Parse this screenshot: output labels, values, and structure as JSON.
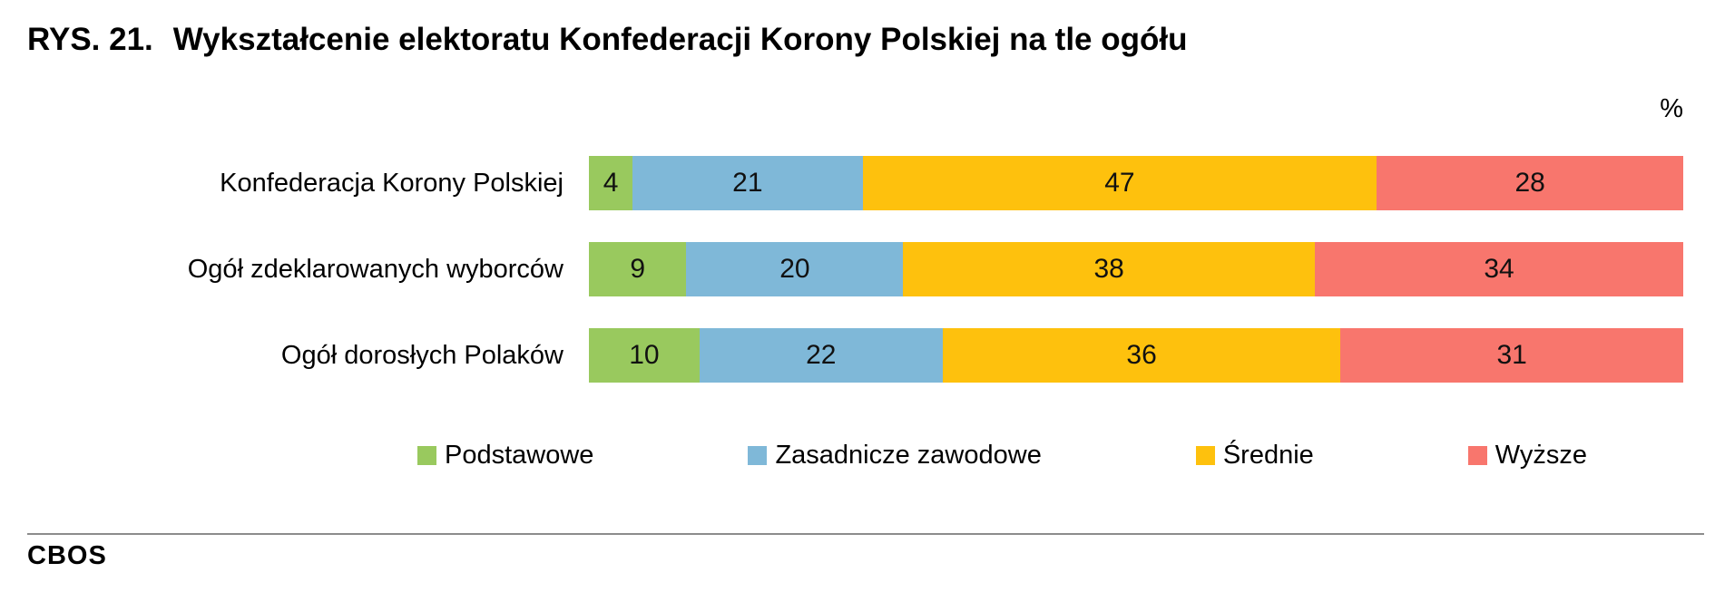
{
  "title": {
    "prefix": "RYS. 21.",
    "text": "Wykształcenie elektoratu Konfederacji Korony Polskiej na tle ogółu"
  },
  "unit_label": "%",
  "footer": {
    "brand": "CBOS"
  },
  "chart_data": {
    "type": "bar",
    "orientation": "horizontal",
    "stacked": true,
    "unit": "%",
    "title": "RYS. 21. Wykształcenie elektoratu Konfederacji Korony Polskiej na tle ogółu",
    "categories": [
      "Konfederacja Korony Polskiej",
      "Ogół zdeklarowanych wyborców",
      "Ogół dorosłych Polaków"
    ],
    "series": [
      {
        "name": "Podstawowe",
        "color": "#99C95E",
        "values": [
          4,
          9,
          10
        ]
      },
      {
        "name": "Zasadnicze zawodowe",
        "color": "#7FB8D8",
        "values": [
          21,
          20,
          22
        ]
      },
      {
        "name": "Średnie",
        "color": "#FEC10D",
        "values": [
          47,
          38,
          36
        ]
      },
      {
        "name": "Wyższe",
        "color": "#F8766D",
        "values": [
          28,
          34,
          31
        ]
      }
    ],
    "legend_position": "bottom",
    "value_labels": "inside-center",
    "grid": false
  }
}
